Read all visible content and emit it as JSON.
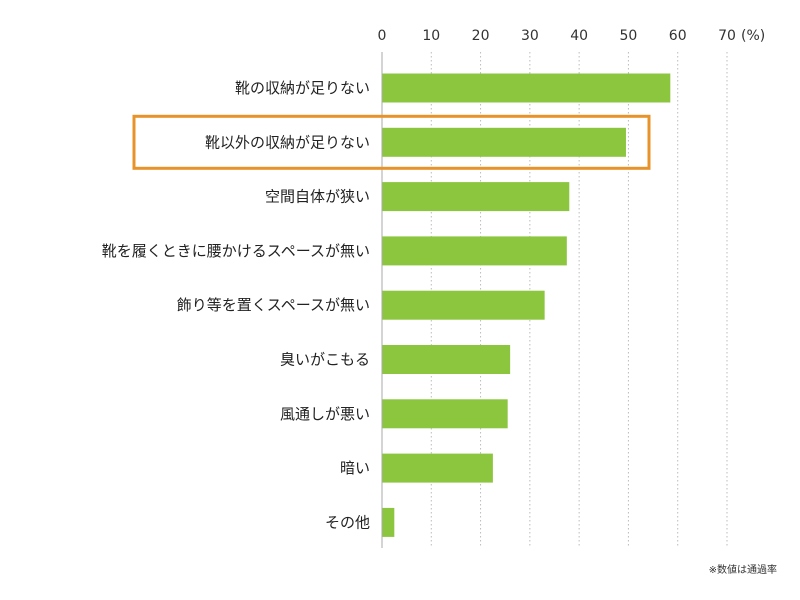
{
  "chart_data": {
    "type": "bar",
    "orientation": "horizontal",
    "categories": [
      "靴の収納が足りない",
      "靴以外の収納が足りない",
      "空間自体が狭い",
      "靴を履くときに腰かけるスペースが無い",
      "飾り等を置くスペースが無い",
      "臭いがこもる",
      "風通しが悪い",
      "暗い",
      "その他"
    ],
    "values": [
      58.5,
      49.5,
      38,
      37.5,
      33,
      26,
      25.5,
      22.5,
      2.5
    ],
    "xlim": [
      0,
      70
    ],
    "x_ticks": [
      "0",
      "10",
      "20",
      "30",
      "40",
      "50",
      "60",
      "70"
    ],
    "unit_label": "(%)",
    "highlighted_category_index": 1,
    "grid": "vertical-dotted",
    "note": "※数値は通過率",
    "colors": {
      "bar": "#8cc63f",
      "highlight_box": "#e8932a",
      "grid": "#bbbbbb",
      "axis": "#aaaaaa"
    }
  }
}
